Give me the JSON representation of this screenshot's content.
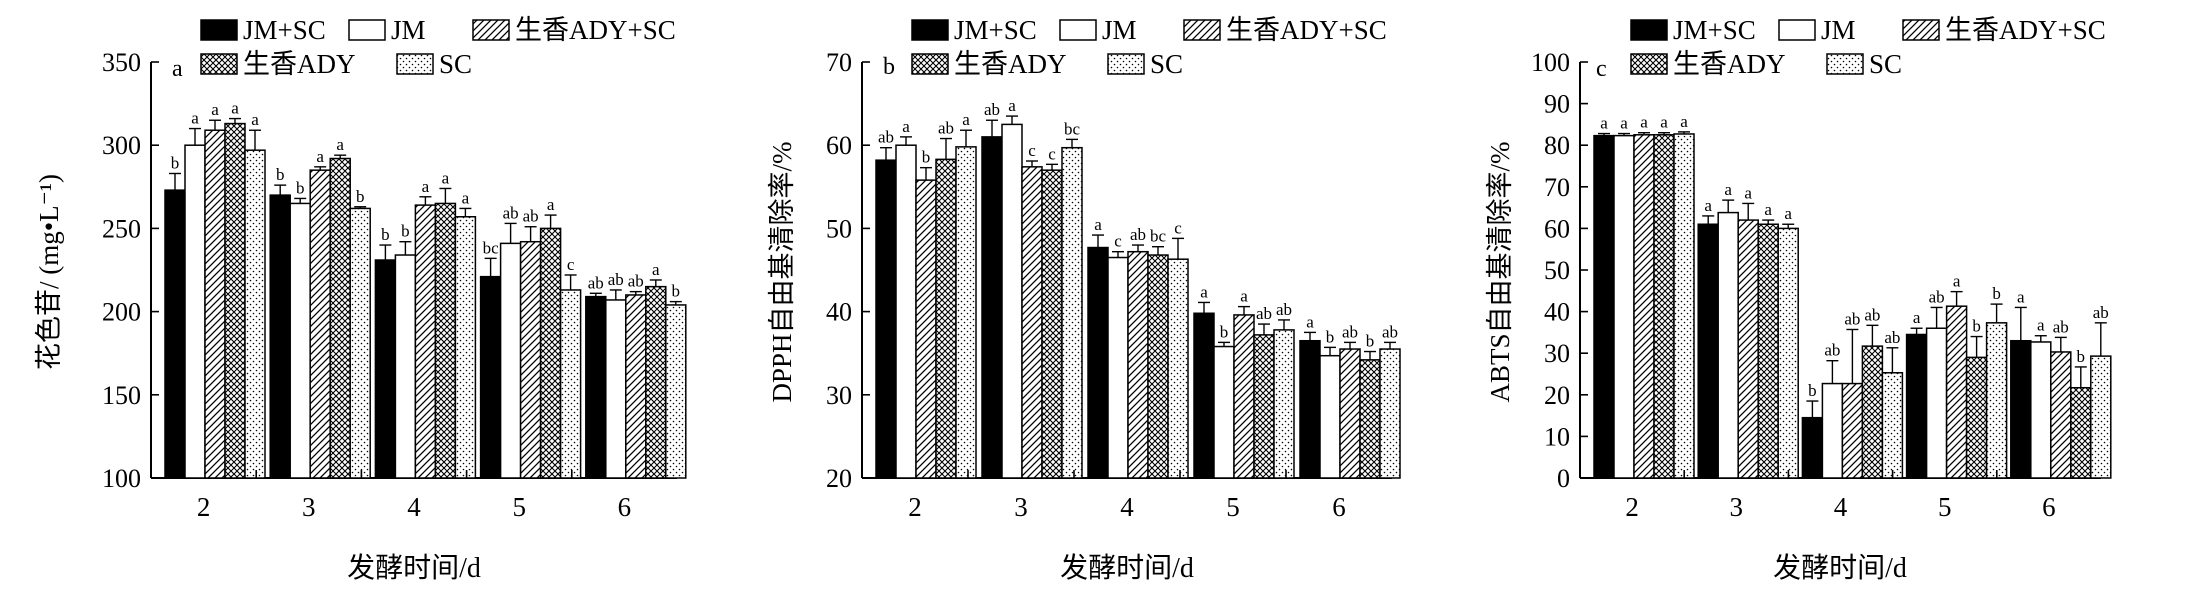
{
  "legend": [
    {
      "label": "JM+SC",
      "pattern": "solid"
    },
    {
      "label": "JM",
      "pattern": "white"
    },
    {
      "label": "生香ADY+SC",
      "pattern": "diagonal"
    },
    {
      "label": "生香ADY",
      "pattern": "crosshatch"
    },
    {
      "label": "SC",
      "pattern": "dots"
    }
  ],
  "chart_data": [
    {
      "type": "bar",
      "panel": "a",
      "xlabel": "发酵时间/d",
      "ylabel": "花色苷/ (mg•L⁻¹)",
      "ylim": [
        100,
        350
      ],
      "yticks": [
        100,
        150,
        200,
        250,
        300,
        350
      ],
      "categories": [
        "2",
        "3",
        "4",
        "5",
        "6"
      ],
      "series": [
        {
          "name": "JM+SC",
          "values": [
            273,
            270,
            231,
            221,
            209
          ],
          "errors": [
            10,
            6,
            9,
            11,
            2
          ],
          "letters": [
            "b",
            "b",
            "b",
            "bc",
            "ab"
          ]
        },
        {
          "name": "JM",
          "values": [
            300,
            265,
            234,
            241,
            207
          ],
          "errors": [
            10,
            3,
            8,
            12,
            6
          ],
          "letters": [
            "a",
            "b",
            "b",
            "ab",
            "ab"
          ]
        },
        {
          "name": "生香ADY+SC",
          "values": [
            309,
            285,
            264,
            242,
            210
          ],
          "errors": [
            6,
            2,
            5,
            9,
            2
          ],
          "letters": [
            "a",
            "a",
            "a",
            "ab",
            "ab"
          ]
        },
        {
          "name": "生香ADY",
          "values": [
            313,
            292,
            265,
            250,
            215
          ],
          "errors": [
            3,
            2,
            9,
            8,
            4
          ],
          "letters": [
            "a",
            "a",
            "a",
            "a",
            "a"
          ]
        },
        {
          "name": "SC",
          "values": [
            297,
            262,
            257,
            213,
            204
          ],
          "errors": [
            12,
            1,
            5,
            9,
            2
          ],
          "letters": [
            "a",
            "b",
            "a",
            "c",
            "b"
          ]
        }
      ]
    },
    {
      "type": "bar",
      "panel": "b",
      "xlabel": "发酵时间/d",
      "ylabel": "DPPH自由基清除率/%",
      "ylim": [
        20,
        70
      ],
      "yticks": [
        20,
        30,
        40,
        50,
        60,
        70
      ],
      "categories": [
        "2",
        "3",
        "4",
        "5",
        "6"
      ],
      "series": [
        {
          "name": "JM+SC",
          "values": [
            58.2,
            61.0,
            47.7,
            39.8,
            36.5
          ],
          "errors": [
            1.5,
            2.0,
            1.5,
            1.3,
            1.0
          ],
          "letters": [
            "ab",
            "ab",
            "a",
            "a",
            "a"
          ]
        },
        {
          "name": "JM",
          "values": [
            60.0,
            62.5,
            46.5,
            35.8,
            34.7
          ],
          "errors": [
            1.0,
            1.0,
            0.7,
            0.5,
            1.0
          ],
          "letters": [
            "a",
            "a",
            "c",
            "b",
            "b"
          ]
        },
        {
          "name": "生香ADY+SC",
          "values": [
            55.8,
            57.4,
            47.2,
            39.6,
            35.5
          ],
          "errors": [
            1.5,
            0.7,
            0.8,
            1.0,
            0.8
          ],
          "letters": [
            "b",
            "c",
            "ab",
            "a",
            "ab"
          ]
        },
        {
          "name": "生香ADY",
          "values": [
            58.3,
            57.0,
            46.8,
            37.2,
            34.2
          ],
          "errors": [
            2.5,
            0.7,
            1.0,
            1.3,
            1.0
          ],
          "letters": [
            "ab",
            "c",
            "bc",
            "ab",
            "b"
          ]
        },
        {
          "name": "SC",
          "values": [
            59.8,
            59.7,
            46.3,
            37.8,
            35.5
          ],
          "errors": [
            2.0,
            1.0,
            2.5,
            1.2,
            0.8
          ],
          "letters": [
            "a",
            "bc",
            "c",
            "ab",
            "ab"
          ]
        }
      ]
    },
    {
      "type": "bar",
      "panel": "c",
      "xlabel": "发酵时间/d",
      "ylabel": "ABTS自由基清除率/%",
      "ylim": [
        0,
        100
      ],
      "yticks": [
        0,
        10,
        20,
        30,
        40,
        50,
        60,
        70,
        80,
        90,
        100
      ],
      "categories": [
        "2",
        "3",
        "4",
        "5",
        "6"
      ],
      "series": [
        {
          "name": "JM+SC",
          "values": [
            82.3,
            61.0,
            14.5,
            34.5,
            33.0
          ],
          "errors": [
            0.5,
            2.0,
            4.0,
            1.5,
            8.0
          ],
          "letters": [
            "a",
            "a",
            "b",
            "a",
            "a"
          ]
        },
        {
          "name": "JM",
          "values": [
            82.3,
            63.8,
            22.7,
            36.0,
            32.7
          ],
          "errors": [
            0.5,
            3.0,
            5.5,
            5.0,
            1.5
          ],
          "letters": [
            "a",
            "a",
            "ab",
            "ab",
            "a"
          ]
        },
        {
          "name": "生香ADY+SC",
          "values": [
            82.5,
            62.0,
            22.7,
            41.3,
            30.3
          ],
          "errors": [
            0.5,
            4.0,
            13.0,
            3.5,
            3.5
          ],
          "letters": [
            "a",
            "a",
            "ab",
            "a",
            "ab"
          ]
        },
        {
          "name": "生香ADY",
          "values": [
            82.5,
            61.0,
            31.7,
            29.0,
            21.7
          ],
          "errors": [
            0.5,
            1.0,
            5.0,
            5.0,
            5.0
          ],
          "letters": [
            "a",
            "a",
            "ab",
            "b",
            "b"
          ]
        },
        {
          "name": "SC",
          "values": [
            82.7,
            60.0,
            25.3,
            37.3,
            29.3
          ],
          "errors": [
            0.5,
            1.0,
            6.0,
            4.5,
            8.0
          ],
          "letters": [
            "a",
            "a",
            "ab",
            "b",
            "ab"
          ]
        }
      ]
    }
  ]
}
